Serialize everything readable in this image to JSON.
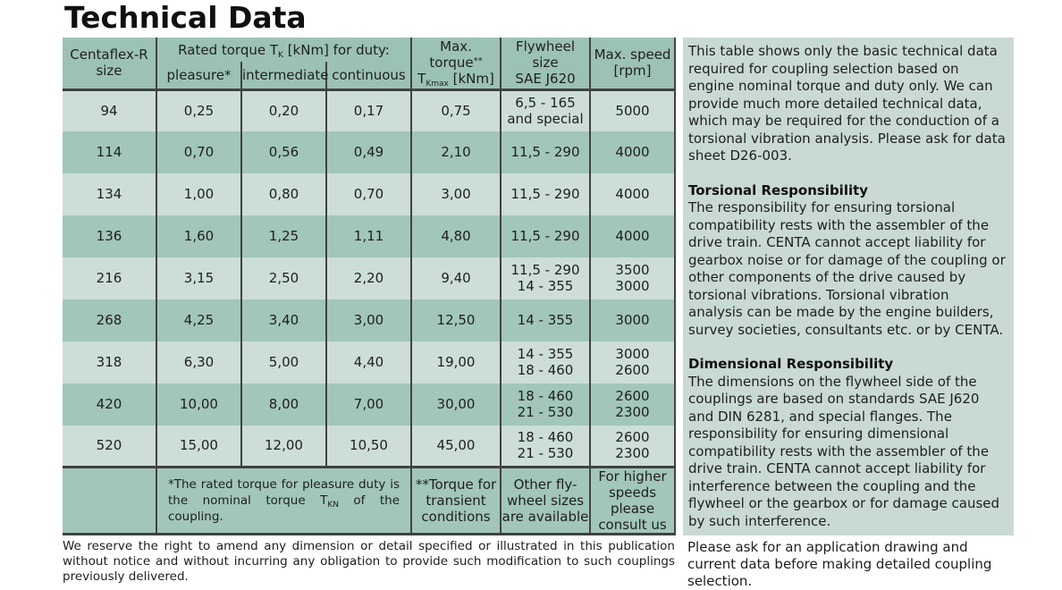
{
  "page": {
    "title": "Technical Data",
    "colors": {
      "header_bg": "#9cc2b5",
      "row_light": "#ccded7",
      "row_dark": "#a2c6ba",
      "panel_bg": "#c9dad3",
      "line": "#424242",
      "text": "#1e1e1e"
    }
  },
  "table": {
    "header": {
      "size": [
        "Centaflex-R",
        "size"
      ],
      "torque_group": {
        "pre": "Rated torque T",
        "sub": "K",
        "post": " [kNm] for duty:"
      },
      "duty_cols": [
        "pleasure*",
        "intermediate",
        "continuous"
      ],
      "max_torque": {
        "label": "Max. torque",
        "sup": "**",
        "sym": "T",
        "sub": "Kmax",
        "unit": " [kNm]"
      },
      "flywheel": [
        "Flywheel size",
        "SAE J620"
      ],
      "max_speed": [
        "Max. speed",
        "[rpm]"
      ]
    },
    "rows": [
      {
        "size": "94",
        "pleasure": "0,25",
        "intermediate": "0,20",
        "continuous": "0,17",
        "max_torque": "0,75",
        "flywheel": [
          "6,5 - 165",
          "and special"
        ],
        "speed": [
          "5000"
        ]
      },
      {
        "size": "114",
        "pleasure": "0,70",
        "intermediate": "0,56",
        "continuous": "0,49",
        "max_torque": "2,10",
        "flywheel": [
          "11,5 - 290"
        ],
        "speed": [
          "4000"
        ]
      },
      {
        "size": "134",
        "pleasure": "1,00",
        "intermediate": "0,80",
        "continuous": "0,70",
        "max_torque": "3,00",
        "flywheel": [
          "11,5 - 290"
        ],
        "speed": [
          "4000"
        ]
      },
      {
        "size": "136",
        "pleasure": "1,60",
        "intermediate": "1,25",
        "continuous": "1,11",
        "max_torque": "4,80",
        "flywheel": [
          "11,5 - 290"
        ],
        "speed": [
          "4000"
        ]
      },
      {
        "size": "216",
        "pleasure": "3,15",
        "intermediate": "2,50",
        "continuous": "2,20",
        "max_torque": "9,40",
        "flywheel": [
          "11,5 - 290",
          "14 - 355"
        ],
        "speed": [
          "3500",
          "3000"
        ]
      },
      {
        "size": "268",
        "pleasure": "4,25",
        "intermediate": "3,40",
        "continuous": "3,00",
        "max_torque": "12,50",
        "flywheel": [
          "14 - 355"
        ],
        "speed": [
          "3000"
        ]
      },
      {
        "size": "318",
        "pleasure": "6,30",
        "intermediate": "5,00",
        "continuous": "4,40",
        "max_torque": "19,00",
        "flywheel": [
          "14 - 355",
          "18 - 460"
        ],
        "speed": [
          "3000",
          "2600"
        ]
      },
      {
        "size": "420",
        "pleasure": "10,00",
        "intermediate": "8,00",
        "continuous": "7,00",
        "max_torque": "30,00",
        "flywheel": [
          "18 - 460",
          "21 - 530"
        ],
        "speed": [
          "2600",
          "2300"
        ]
      },
      {
        "size": "520",
        "pleasure": "15,00",
        "intermediate": "12,00",
        "continuous": "10,50",
        "max_torque": "45,00",
        "flywheel": [
          "18 - 460",
          "21 - 530"
        ],
        "speed": [
          "2600",
          "2300"
        ]
      }
    ],
    "footnotes": {
      "torque_note": {
        "pre": "*The rated torque for pleasure duty is the nominal torque T",
        "sub": "KN",
        "post": " of the coupling."
      },
      "max_torque_note": [
        "**Torque for",
        "transient",
        "conditions"
      ],
      "flywheel_note": [
        "Other fly-",
        "wheel sizes",
        "are available"
      ],
      "speed_note": [
        "For higher",
        "speeds please",
        "consult us"
      ]
    }
  },
  "sidebar": {
    "intro": "This table shows only the basic technical data required for coupling selection based on engine nominal torque and duty only. We can provide much more detailed technical data, which may be required for the conduction of a torsional vibration analysis. Please ask for data sheet D26-003.",
    "sections": [
      {
        "heading": "Torsional Responsibility",
        "body": "The responsibility for ensuring torsional compatibility rests with the assembler of the drive train. CENTA cannot accept liability for gearbox noise or for damage of the coupling or other components of the drive caused by torsional vibrations. Torsional vibration analysis can be made by the engine builders, survey societies, consultants etc. or by CENTA."
      },
      {
        "heading": "Dimensional Responsibility",
        "body": "The dimensions on the flywheel side of the couplings are based on standards SAE J620 and DIN 6281, and special flanges. The responsibility for ensuring dimensional compatibility rests with the assembler of the drive train. CENTA cannot accept liability for interference between the coupling and the flywheel or the gearbox or for damage caused by such interference."
      }
    ]
  },
  "footer": {
    "left_note": "We reserve the right to amend any dimension or detail specified or illustrated in this publication without notice and without incurring any obligation to provide such modification to such couplings previously delivered.",
    "right_note": "Please ask for an application drawing and current data before making detailed coupling selection."
  }
}
